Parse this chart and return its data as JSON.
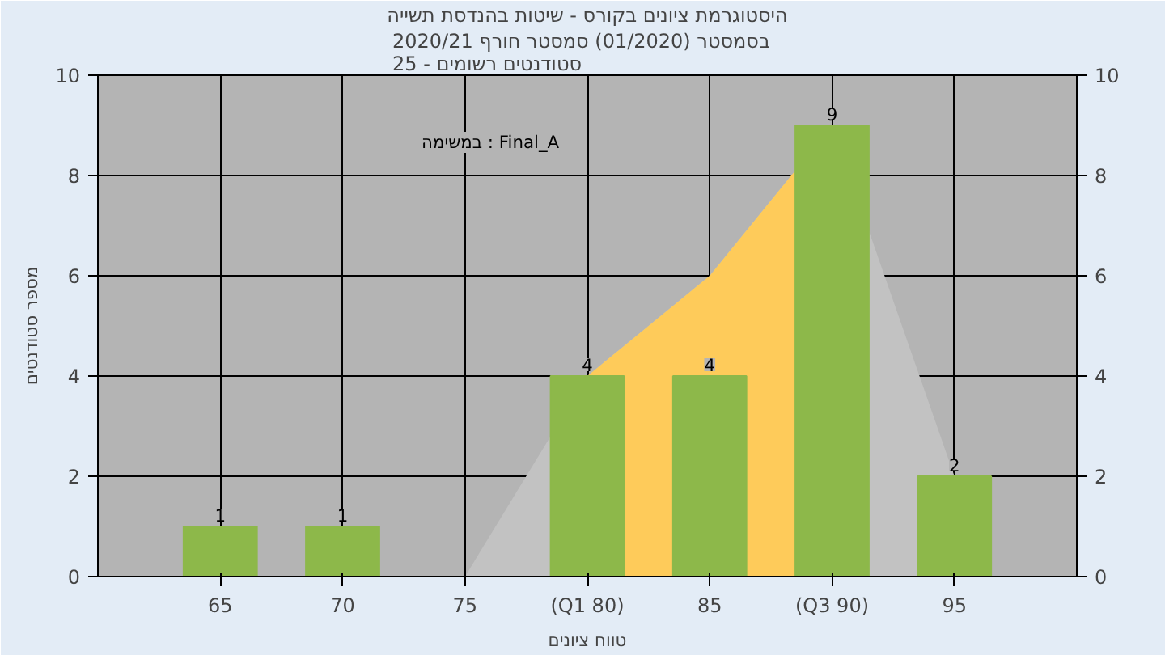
{
  "chart_data": {
    "type": "bar",
    "title": "היסטוגרמת ציונים בקורס - שיטות בהנדסת תשייה",
    "subtitle": "בסמסטר  (01/2020)  סמסטר חורף 2020/21\nסטודנטים רשומים - 25",
    "xlabel": "טווח ציונים",
    "ylabel": "מספר סטודנטים",
    "annotations": [
      "במשימה : Final_A"
    ],
    "categories": [
      "65",
      "70",
      "75",
      "(Q1 80)",
      "85",
      "(Q3 90)",
      "95"
    ],
    "series": [
      {
        "type": "area",
        "color": "#c2c2c2",
        "values": [
          null,
          null,
          0,
          4,
          6,
          9,
          2
        ]
      },
      {
        "type": "area",
        "color": "#fecb5a",
        "values": [
          null,
          null,
          null,
          4,
          6,
          9,
          null
        ]
      },
      {
        "color": "#8db84a",
        "values": [
          1,
          1,
          0,
          4,
          4,
          9,
          2
        ],
        "value_labels": [
          "1",
          "1",
          null,
          "4",
          "4",
          "9",
          "2"
        ]
      }
    ],
    "ylim": [
      0,
      10
    ],
    "yticks": [
      0,
      2,
      4,
      6,
      8,
      10
    ],
    "y2lim": [
      0,
      10
    ],
    "y2ticks": [
      0,
      2,
      4,
      6,
      8,
      10
    ],
    "grid": true
  }
}
